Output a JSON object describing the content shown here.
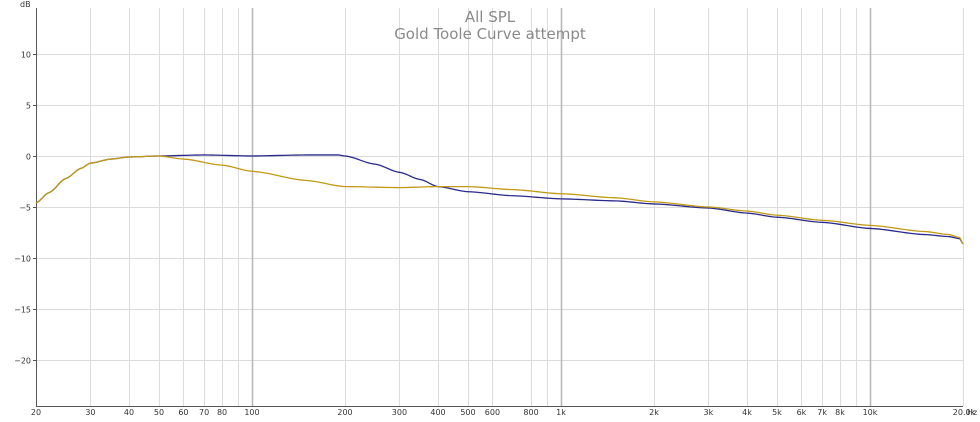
{
  "chart_data": {
    "type": "line",
    "title": "All SPL",
    "subtitle": "Gold Toole Curve attempt",
    "xlabel": "Hz",
    "ylabel": "dB",
    "x_scale": "log",
    "xlim": [
      20,
      20000
    ],
    "ylim": [
      -24.5,
      14.5
    ],
    "grid": true,
    "y_ticks": [
      10,
      5,
      0,
      -5,
      -10,
      -15,
      -20
    ],
    "y_tick_labels": [
      "10",
      "5",
      "0",
      "−5",
      "−10",
      "−15",
      "−20"
    ],
    "x_ticks": [
      20,
      30,
      40,
      50,
      60,
      70,
      80,
      100,
      200,
      300,
      400,
      500,
      600,
      800,
      1000,
      2000,
      3000,
      4000,
      5000,
      6000,
      7000,
      8000,
      10000,
      20000
    ],
    "x_tick_labels": [
      "20",
      "30",
      "40",
      "50",
      "60",
      "70",
      "80",
      "100",
      "200",
      "300",
      "400",
      "500",
      "600",
      "800",
      "1k",
      "2k",
      "3k",
      "4k",
      "5k",
      "6k",
      "7k",
      "8k",
      "10k",
      "20.0k"
    ],
    "series": [
      {
        "color": "#2a2a8a",
        "points": [
          [
            20,
            -4.6
          ],
          [
            22,
            -3.6
          ],
          [
            25,
            -2.2
          ],
          [
            28,
            -1.2
          ],
          [
            30,
            -0.7
          ],
          [
            35,
            -0.3
          ],
          [
            40,
            -0.1
          ],
          [
            50,
            0.0
          ],
          [
            70,
            0.1
          ],
          [
            100,
            0.0
          ],
          [
            150,
            0.1
          ],
          [
            190,
            0.1
          ],
          [
            200,
            0.0
          ],
          [
            250,
            -0.8
          ],
          [
            300,
            -1.6
          ],
          [
            350,
            -2.3
          ],
          [
            400,
            -3.0
          ],
          [
            500,
            -3.5
          ],
          [
            700,
            -3.9
          ],
          [
            1000,
            -4.2
          ],
          [
            1500,
            -4.4
          ],
          [
            2000,
            -4.7
          ],
          [
            3000,
            -5.1
          ],
          [
            4000,
            -5.6
          ],
          [
            5000,
            -6.0
          ],
          [
            7000,
            -6.5
          ],
          [
            10000,
            -7.1
          ],
          [
            15000,
            -7.7
          ],
          [
            18000,
            -7.9
          ],
          [
            19500,
            -8.1
          ],
          [
            20000,
            -8.6
          ]
        ]
      },
      {
        "color": "#c19a16",
        "points": [
          [
            20,
            -4.6
          ],
          [
            22,
            -3.6
          ],
          [
            25,
            -2.2
          ],
          [
            28,
            -1.2
          ],
          [
            30,
            -0.7
          ],
          [
            35,
            -0.3
          ],
          [
            40,
            -0.1
          ],
          [
            50,
            0.0
          ],
          [
            60,
            -0.3
          ],
          [
            80,
            -0.9
          ],
          [
            100,
            -1.5
          ],
          [
            150,
            -2.4
          ],
          [
            200,
            -3.0
          ],
          [
            300,
            -3.1
          ],
          [
            400,
            -3.0
          ],
          [
            500,
            -3.0
          ],
          [
            700,
            -3.3
          ],
          [
            1000,
            -3.7
          ],
          [
            1500,
            -4.1
          ],
          [
            2000,
            -4.5
          ],
          [
            3000,
            -5.0
          ],
          [
            4000,
            -5.4
          ],
          [
            5000,
            -5.8
          ],
          [
            7000,
            -6.3
          ],
          [
            10000,
            -6.8
          ],
          [
            15000,
            -7.4
          ],
          [
            18000,
            -7.7
          ],
          [
            19500,
            -8.0
          ],
          [
            20000,
            -8.6
          ]
        ]
      }
    ]
  }
}
